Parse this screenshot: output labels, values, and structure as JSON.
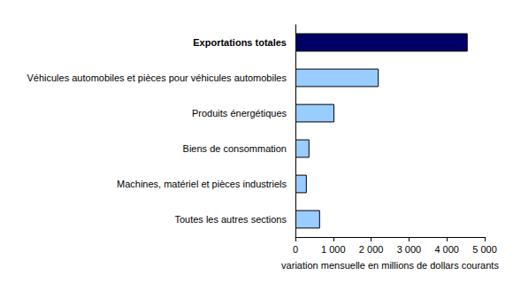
{
  "chart_data": {
    "type": "bar",
    "orientation": "horizontal",
    "categories": [
      "Exportations totales",
      "Véhicules automobiles et pièces pour véhicules automobiles",
      "Produits énergétiques",
      "Biens de consommation",
      "Machines, matériel et pièces industriels",
      "Toutes les autres sections"
    ],
    "values": [
      4550,
      2200,
      1030,
      370,
      300,
      650
    ],
    "colors": [
      "#000066",
      "#99ccff",
      "#99ccff",
      "#99ccff",
      "#99ccff",
      "#99ccff"
    ],
    "xlabel": "variation mensuelle en millions de dollars courants",
    "xlim": [
      0,
      5000
    ],
    "xticks": [
      0,
      {
        "value": 1000,
        "label": "1 000"
      },
      {
        "value": 2000,
        "label": "2 000"
      },
      {
        "value": 3000,
        "label": "3 000"
      },
      {
        "value": 4000,
        "label": "4 000"
      },
      {
        "value": 5000,
        "label": "5 000"
      }
    ],
    "grid": false
  }
}
